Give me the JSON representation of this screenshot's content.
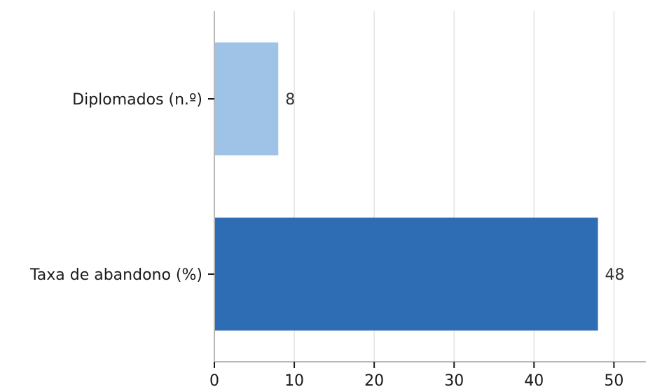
{
  "chart_data": {
    "type": "bar",
    "orientation": "horizontal",
    "categories": [
      "Diplomados (n.º)",
      "Taxa de abandono (%)"
    ],
    "values": [
      8,
      48
    ],
    "colors": [
      "#9fc3e7",
      "#2e6db4"
    ],
    "value_labels": [
      "8",
      "48"
    ],
    "xlim": [
      0,
      54
    ],
    "xticks": [
      0,
      10,
      20,
      30,
      40,
      50
    ],
    "xtick_labels": [
      "0",
      "10",
      "20",
      "30",
      "40",
      "50"
    ],
    "grid": "vertical",
    "title": "",
    "xlabel": "",
    "ylabel": ""
  }
}
